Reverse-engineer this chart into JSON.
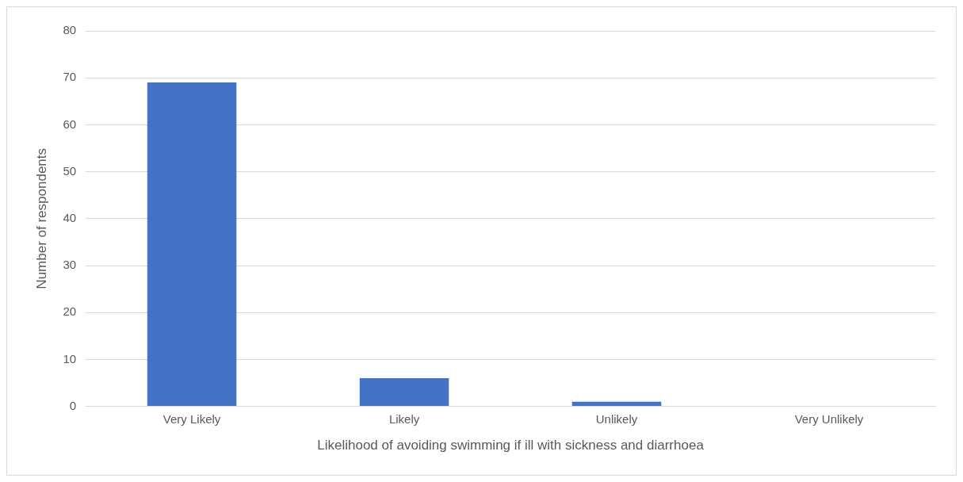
{
  "chart_data": {
    "type": "bar",
    "xlabel": "Likelihood of avoiding swimming if ill with sickness and diarrhoea",
    "ylabel": "Number of respondents",
    "categories": [
      "Very Likely",
      "Likely",
      "Unlikely",
      "Very Unlikely"
    ],
    "values": [
      69,
      6,
      1,
      0
    ],
    "color": "#4472c4",
    "ylim": [
      0,
      80
    ],
    "yticks": [
      0,
      10,
      20,
      30,
      40,
      50,
      60,
      70,
      80
    ],
    "grid": "y",
    "legend": false
  }
}
